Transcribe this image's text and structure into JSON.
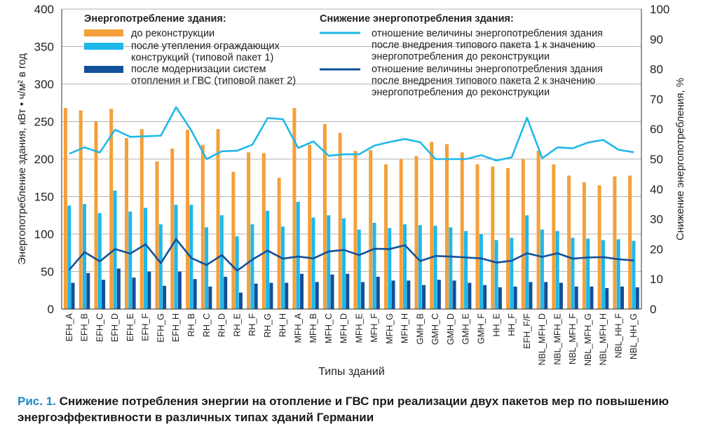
{
  "chart_data": {
    "type": "bar",
    "ylabel": "Энергопотребление здания, кВт • ч/м² в год",
    "y2label": "Снижение энергопотребления, %",
    "xlabel": "Типы зданий",
    "ylim": [
      0,
      400
    ],
    "y2lim": [
      0,
      100
    ],
    "yticks": [
      0,
      50,
      100,
      150,
      200,
      250,
      300,
      350,
      400
    ],
    "y2ticks": [
      0,
      10,
      20,
      30,
      40,
      50,
      60,
      70,
      80,
      90,
      100
    ],
    "grid": "horizontal",
    "categories": [
      "EFH_A",
      "EFH_B",
      "EFH_C",
      "EFH_D",
      "EFH_E",
      "EFH_F",
      "EFH_G",
      "EFH_H",
      "RH_B",
      "RH_C",
      "RH_D",
      "RH_E",
      "RH_F",
      "RH_G",
      "RH_H",
      "MFH_A",
      "MFH_B",
      "MFH_C",
      "MFH_D",
      "MFH_E",
      "MFH_F",
      "MFH_G",
      "MFH_H",
      "GMH_B",
      "GMH_C",
      "GMH_D",
      "GMH_E",
      "GMH_F",
      "HH_E",
      "HH_F",
      "EFH_F/F",
      "NBL_MFH_D",
      "NBL_MFH_E",
      "NBL_MFH_F",
      "NBL_MFH_G",
      "NBL_MFH_H",
      "NBL_HH_F",
      "NBL_HH_G"
    ],
    "bar_series": [
      {
        "name": "до реконструкции",
        "color": "#f5a03a",
        "values": [
          268,
          265,
          250,
          267,
          228,
          240,
          197,
          214,
          239,
          219,
          240,
          183,
          209,
          208,
          175,
          268,
          219,
          247,
          235,
          211,
          212,
          193,
          200,
          204,
          223,
          220,
          209,
          193,
          190,
          188,
          200,
          211,
          193,
          178,
          169,
          165,
          177,
          178
        ]
      },
      {
        "name": "после утепления ограждающих конструкций (типовой пакет 1)",
        "color": "#1fb8ea",
        "values": [
          138,
          140,
          128,
          158,
          130,
          135,
          113,
          139,
          139,
          109,
          125,
          97,
          113,
          131,
          110,
          143,
          122,
          125,
          121,
          106,
          115,
          108,
          113,
          112,
          111,
          109,
          104,
          100,
          92,
          95,
          125,
          106,
          104,
          95,
          94,
          92,
          93,
          91
        ]
      },
      {
        "name": "после модернизации систем отопления и ГВС (типовой пакет 2)",
        "color": "#12509a",
        "values": [
          35,
          48,
          39,
          54,
          42,
          50,
          31,
          50,
          40,
          30,
          43,
          22,
          34,
          35,
          35,
          47,
          36,
          46,
          47,
          36,
          43,
          38,
          38,
          32,
          39,
          38,
          35,
          32,
          29,
          30,
          36,
          36,
          35,
          30,
          30,
          28,
          30,
          29
        ]
      }
    ],
    "line_series": [
      {
        "name": "отношение величины энергопотребления здания после внедрения типового пакета 1 к значению энергопотребления до реконструкции",
        "color": "#1fb8ea",
        "values": [
          51.8,
          53.9,
          52.2,
          59.8,
          57.4,
          57.6,
          57.8,
          67.3,
          59.5,
          50.0,
          52.6,
          52.8,
          54.8,
          63.7,
          63.3,
          53.7,
          55.9,
          51.1,
          51.6,
          51.6,
          54.5,
          55.7,
          56.7,
          55.6,
          50.0,
          50.0,
          50.0,
          51.3,
          49.5,
          50.6,
          63.8,
          50.3,
          53.9,
          53.6,
          55.5,
          56.4,
          53.1,
          52.3
        ]
      },
      {
        "name": "отношение величины энергопотребления здания после внедрения типового пакета 2 к значению энергопотребления до реконструкции",
        "color": "#12509a",
        "values": [
          13.1,
          19.0,
          15.9,
          20.0,
          18.5,
          21.6,
          15.3,
          23.3,
          17.0,
          14.7,
          18.0,
          12.8,
          16.5,
          19.5,
          16.8,
          17.5,
          16.9,
          19.2,
          19.7,
          18.0,
          20.1,
          20.0,
          21.3,
          16.0,
          17.7,
          17.5,
          17.2,
          16.9,
          15.5,
          16.1,
          18.6,
          17.4,
          18.6,
          16.8,
          17.2,
          17.3,
          16.6,
          16.2
        ]
      }
    ]
  },
  "legend": {
    "left_title": "Энергопотребление здания:",
    "right_title": "Снижение энергопотребления здания:",
    "bar1_lines": [
      "до реконструкции"
    ],
    "bar2_lines": [
      "после утепления ограждающих",
      "конструкций (типовой пакет 1)"
    ],
    "bar3_lines": [
      "после модернизации систем",
      "отопления и ГВС (типовой пакет 2)"
    ],
    "line1_lines": [
      "отношение величины энергопотребления здания",
      "после внедрения типового пакета 1 к значению",
      "энергопотребления до реконструкции"
    ],
    "line2_lines": [
      "отношение величины энергопотребления здания",
      "после внедрения типового пакета 2 к значению",
      "энергопотребления до реконструкции"
    ]
  },
  "caption": {
    "label": "Рис. 1.",
    "text": "Снижение потребления энергии на отопление и ГВС при реализации двух пакетов мер по повышению энергоэффективности в различных типах зданий Германии"
  }
}
